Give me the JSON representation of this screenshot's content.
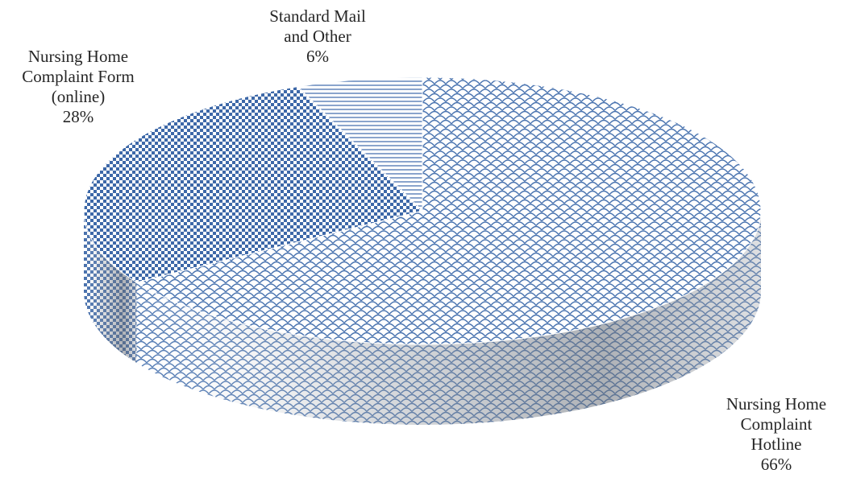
{
  "chart_data": {
    "type": "pie",
    "style": "3d",
    "title": "",
    "slices": [
      {
        "label_lines": [
          "Nursing Home",
          "Complaint",
          "Hotline"
        ],
        "value": 66,
        "value_text": "66%",
        "pattern": "scales"
      },
      {
        "label_lines": [
          "Nursing Home",
          "Complaint Form",
          "(online)"
        ],
        "value": 28,
        "value_text": "28%",
        "pattern": "checker"
      },
      {
        "label_lines": [
          "Standard Mail",
          "and Other"
        ],
        "value": 6,
        "value_text": "6%",
        "pattern": "hlines"
      }
    ],
    "colors": {
      "pattern_blue": "#4a74b0",
      "checker_dark": "#3d68a8",
      "background": "#ffffff",
      "label_text": "#262626"
    }
  }
}
